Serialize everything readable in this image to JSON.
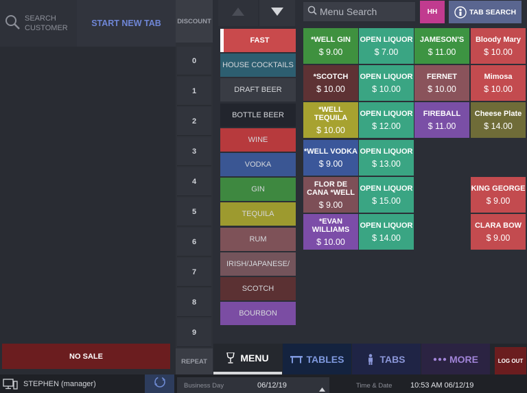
{
  "left": {
    "search_customer_label": "SEARCH CUSTOMER",
    "start_new_tab_label": "START NEW TAB",
    "no_sale_label": "NO SALE"
  },
  "keypad": {
    "discount_label": "DISCOUNT",
    "numbers": [
      "0",
      "1",
      "2",
      "3",
      "4",
      "5",
      "6",
      "7",
      "8",
      "9"
    ],
    "repeat_label": "REPEAT"
  },
  "categories": [
    {
      "label": "FAST",
      "color": "#c94a4c",
      "selected": true
    },
    {
      "label": "HOUSE COCKTAILS",
      "color": "#2d5e70"
    },
    {
      "label": "DRAFT BEER",
      "color": "#393c44"
    },
    {
      "label": "BOTTLE BEER",
      "color": "#22252d"
    },
    {
      "label": "WINE",
      "color": "#b73a3d"
    },
    {
      "label": "VODKA",
      "color": "#3a5693"
    },
    {
      "label": "GIN",
      "color": "#3e8840"
    },
    {
      "label": "TEQUILA",
      "color": "#9d9a2f"
    },
    {
      "label": "RUM",
      "color": "#7e5258"
    },
    {
      "label": "IRISH/JAPANESE/",
      "color": "#74545b"
    },
    {
      "label": "SCOTCH",
      "color": "#5b3133"
    },
    {
      "label": "BOURBON",
      "color": "#7b4da3"
    }
  ],
  "top_bar": {
    "search_placeholder": "Menu Search",
    "hh_label": "HH",
    "tab_search_label": "TAB SEARCH"
  },
  "menu_items": [
    {
      "name": "*WELL GIN",
      "price": "$ 9.00",
      "color": "#3f913f"
    },
    {
      "name": "OPEN LIQUOR",
      "price": "$ 7.00",
      "color": "#3aa583"
    },
    {
      "name": "JAMESON'S",
      "price": "$ 11.00",
      "color": "#3d9442"
    },
    {
      "name": "Bloody Mary",
      "price": "$ 10.00",
      "color": "#c34b4f"
    },
    {
      "name": "*SCOTCH",
      "price": "$ 10.00",
      "color": "#5e3234"
    },
    {
      "name": "OPEN LIQUOR",
      "price": "$ 10.00",
      "color": "#3aa583"
    },
    {
      "name": "FERNET",
      "price": "$ 10.00",
      "color": "#8a535b"
    },
    {
      "name": "Mimosa",
      "price": "$ 10.00",
      "color": "#c34b4f"
    },
    {
      "name": "*WELL TEQUILA",
      "price": "$ 10.00",
      "color": "#a7a230"
    },
    {
      "name": "OPEN LIQUOR",
      "price": "$ 12.00",
      "color": "#3aa583"
    },
    {
      "name": "FIREBALL",
      "price": "$ 11.00",
      "color": "#7a4fa6"
    },
    {
      "name": "Cheese Plate",
      "price": "$ 14.00",
      "color": "#6f6c38"
    },
    {
      "name": "*WELL VODKA",
      "price": "$ 9.00",
      "color": "#3b579a"
    },
    {
      "name": "OPEN LIQUOR",
      "price": "$ 13.00",
      "color": "#3aa583"
    },
    {
      "name": "FLOR DE CANA *WELL",
      "price": "$ 9.00",
      "color": "#7d4f57"
    },
    {
      "name": "OPEN LIQUOR",
      "price": "$ 15.00",
      "color": "#3aa583"
    },
    {
      "name": "KING GEORGE",
      "price": "$ 9.00",
      "color": "#c34b4f"
    },
    {
      "name": "*EVAN WILLIAMS",
      "price": "$ 10.00",
      "color": "#7c4da8"
    },
    {
      "name": "OPEN LIQUOR",
      "price": "$ 14.00",
      "color": "#3aa583"
    },
    {
      "name": "CLARA BOW",
      "price": "$ 9.00",
      "color": "#c34b4f"
    }
  ],
  "bottom_nav": {
    "menu_label": "MENU",
    "tables_label": "TABLES",
    "tabs_label": "TABS",
    "more_label": "MORE",
    "logout_label": "LOG OUT"
  },
  "status_bar": {
    "user": "STEPHEN (manager)",
    "business_day_label": "Business Day",
    "business_day_value": "06/12/19",
    "time_date_label": "Time & Date",
    "time_date_value": "10:53 AM 06/12/19"
  }
}
